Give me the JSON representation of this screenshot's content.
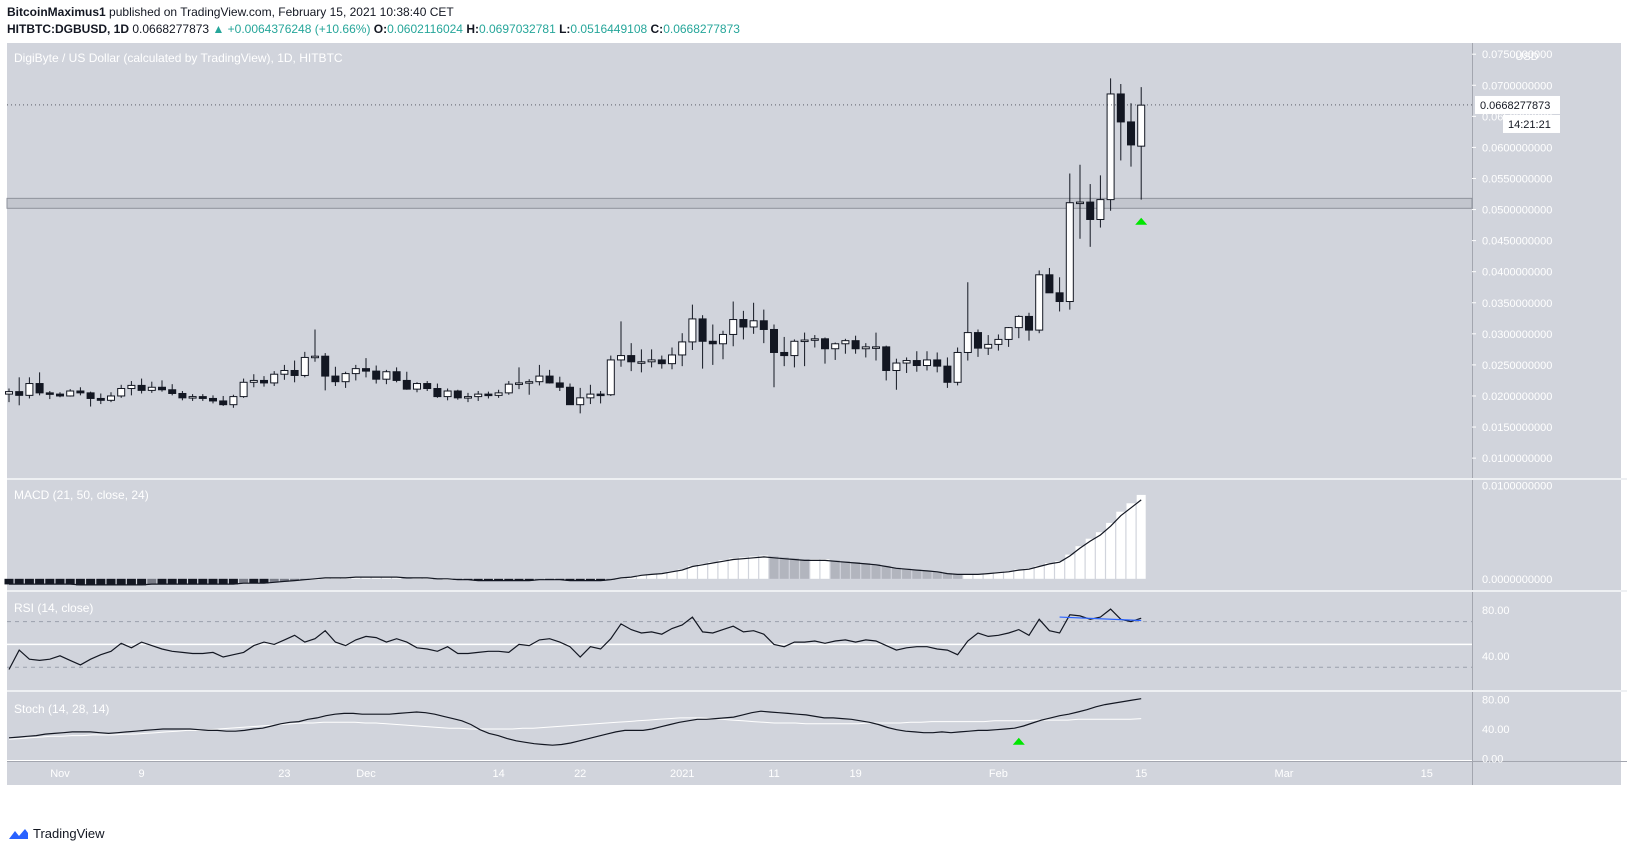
{
  "header": {
    "author": "BitcoinMaximus1",
    "published": "published on TradingView.com, February 15, 2021 10:38:40 CET",
    "symbol": "HITBTC:DGBUSD, 1D",
    "last": "0.0668277873",
    "change": "▲ +0.0064376248 (+10.66%)",
    "o_label": "O:",
    "o_value": "0.0602116024",
    "h_label": "H:",
    "h_value": "0.0697032781",
    "l_label": "L:",
    "l_value": "0.0516449108",
    "c_label": "C:",
    "c_value": "0.0668277873"
  },
  "footer": {
    "brand": "TradingView"
  },
  "colors": {
    "pane_bg": "#d1d4dc",
    "up_body": "#ffffff",
    "down_body": "#131722",
    "arrow": "#00e600",
    "price_text": "#131722"
  },
  "chart_data": {
    "type": "candlestick",
    "title": "DigiByte / US Dollar (calculated by TradingView), 1D, HITBTC",
    "currency": "USD",
    "ylim": [
      0.0068,
      0.0768
    ],
    "price_ticks": [
      "0.0750000000",
      "0.0700000000",
      "0.0650000000",
      "0.0600000000",
      "0.0550000000",
      "0.0500000000",
      "0.0450000000",
      "0.0400000000",
      "0.0350000000",
      "0.0300000000",
      "0.0250000000",
      "0.0200000000",
      "0.0150000000",
      "0.0100000000"
    ],
    "last_price_label": "0.0668277873",
    "countdown_label": "14:21:21",
    "support_zone": [
      0.0502,
      0.0518
    ],
    "x_labels": [
      "Nov",
      "9",
      "23",
      "Dec",
      "14",
      "22",
      "2021",
      "11",
      "19",
      "Feb",
      "15",
      "Mar",
      "15"
    ],
    "ohlc": [
      [
        0.0203,
        0.0212,
        0.019,
        0.0207
      ],
      [
        0.0207,
        0.023,
        0.0185,
        0.0201
      ],
      [
        0.0201,
        0.023,
        0.0196,
        0.022
      ],
      [
        0.022,
        0.0238,
        0.0201,
        0.0205
      ],
      [
        0.0205,
        0.0208,
        0.0195,
        0.0203
      ],
      [
        0.0203,
        0.0206,
        0.0198,
        0.02
      ],
      [
        0.02,
        0.0211,
        0.0199,
        0.0208
      ],
      [
        0.0208,
        0.0214,
        0.0201,
        0.0205
      ],
      [
        0.0205,
        0.0207,
        0.0183,
        0.0196
      ],
      [
        0.0196,
        0.0204,
        0.0187,
        0.0193
      ],
      [
        0.0193,
        0.0206,
        0.019,
        0.02
      ],
      [
        0.02,
        0.0218,
        0.0197,
        0.0212
      ],
      [
        0.0212,
        0.0224,
        0.0201,
        0.0217
      ],
      [
        0.0217,
        0.0228,
        0.0204,
        0.0209
      ],
      [
        0.0209,
        0.0223,
        0.0205,
        0.0214
      ],
      [
        0.0214,
        0.0225,
        0.0207,
        0.021
      ],
      [
        0.021,
        0.0219,
        0.0201,
        0.0204
      ],
      [
        0.0204,
        0.0208,
        0.0193,
        0.0197
      ],
      [
        0.0197,
        0.0203,
        0.0192,
        0.0199
      ],
      [
        0.0199,
        0.0203,
        0.0192,
        0.0196
      ],
      [
        0.0196,
        0.0201,
        0.0188,
        0.0192
      ],
      [
        0.0192,
        0.02,
        0.0184,
        0.0186
      ],
      [
        0.0186,
        0.0202,
        0.0181,
        0.0199
      ],
      [
        0.0199,
        0.0228,
        0.0197,
        0.0222
      ],
      [
        0.0222,
        0.0235,
        0.0214,
        0.0225
      ],
      [
        0.0225,
        0.0232,
        0.0215,
        0.0221
      ],
      [
        0.0221,
        0.024,
        0.0216,
        0.0235
      ],
      [
        0.0235,
        0.025,
        0.0226,
        0.0241
      ],
      [
        0.0241,
        0.0257,
        0.0222,
        0.0233
      ],
      [
        0.0233,
        0.0271,
        0.023,
        0.0262
      ],
      [
        0.0262,
        0.0307,
        0.0255,
        0.0264
      ],
      [
        0.0264,
        0.0269,
        0.0209,
        0.0232
      ],
      [
        0.0232,
        0.0247,
        0.0216,
        0.0223
      ],
      [
        0.0223,
        0.0239,
        0.0213,
        0.0236
      ],
      [
        0.0236,
        0.025,
        0.0225,
        0.0244
      ],
      [
        0.0244,
        0.0261,
        0.023,
        0.024
      ],
      [
        0.024,
        0.0249,
        0.022,
        0.0227
      ],
      [
        0.0227,
        0.0242,
        0.0219,
        0.0239
      ],
      [
        0.0239,
        0.0246,
        0.0222,
        0.0225
      ],
      [
        0.0225,
        0.0239,
        0.021,
        0.0211
      ],
      [
        0.0211,
        0.0222,
        0.0206,
        0.022
      ],
      [
        0.022,
        0.0224,
        0.0208,
        0.0212
      ],
      [
        0.0212,
        0.022,
        0.0197,
        0.0199
      ],
      [
        0.0199,
        0.0212,
        0.0193,
        0.0208
      ],
      [
        0.0208,
        0.021,
        0.0194,
        0.0197
      ],
      [
        0.0197,
        0.0205,
        0.019,
        0.0199
      ],
      [
        0.0199,
        0.0208,
        0.0192,
        0.0203
      ],
      [
        0.0203,
        0.0207,
        0.0196,
        0.0201
      ],
      [
        0.0201,
        0.021,
        0.0197,
        0.0205
      ],
      [
        0.0205,
        0.0224,
        0.0202,
        0.0219
      ],
      [
        0.0219,
        0.0246,
        0.0211,
        0.0221
      ],
      [
        0.0221,
        0.0227,
        0.0202,
        0.0223
      ],
      [
        0.0223,
        0.025,
        0.0217,
        0.0232
      ],
      [
        0.0232,
        0.0242,
        0.022,
        0.0221
      ],
      [
        0.0221,
        0.0231,
        0.0208,
        0.0214
      ],
      [
        0.0214,
        0.022,
        0.0187,
        0.0186
      ],
      [
        0.0186,
        0.0213,
        0.0172,
        0.0197
      ],
      [
        0.0197,
        0.0218,
        0.0187,
        0.0203
      ],
      [
        0.0203,
        0.0208,
        0.0188,
        0.0202
      ],
      [
        0.0202,
        0.0265,
        0.02,
        0.0258
      ],
      [
        0.0258,
        0.032,
        0.0247,
        0.0265
      ],
      [
        0.0265,
        0.0285,
        0.024,
        0.0255
      ],
      [
        0.0255,
        0.0275,
        0.0238,
        0.0255
      ],
      [
        0.0255,
        0.0275,
        0.0246,
        0.0258
      ],
      [
        0.0258,
        0.0265,
        0.0244,
        0.0252
      ],
      [
        0.0252,
        0.0278,
        0.0243,
        0.0266
      ],
      [
        0.0266,
        0.0301,
        0.0248,
        0.0287
      ],
      [
        0.0287,
        0.0347,
        0.0274,
        0.0324
      ],
      [
        0.0324,
        0.033,
        0.0244,
        0.0288
      ],
      [
        0.0288,
        0.0315,
        0.025,
        0.0284
      ],
      [
        0.0284,
        0.0305,
        0.0259,
        0.0299
      ],
      [
        0.0299,
        0.0352,
        0.028,
        0.0323
      ],
      [
        0.0323,
        0.0337,
        0.0291,
        0.0311
      ],
      [
        0.0311,
        0.035,
        0.03,
        0.0321
      ],
      [
        0.0321,
        0.0339,
        0.0285,
        0.0307
      ],
      [
        0.0307,
        0.0315,
        0.0214,
        0.027
      ],
      [
        0.027,
        0.0295,
        0.0248,
        0.0265
      ],
      [
        0.0265,
        0.0291,
        0.0246,
        0.0288
      ],
      [
        0.0288,
        0.0302,
        0.0248,
        0.029
      ],
      [
        0.029,
        0.0298,
        0.0278,
        0.0292
      ],
      [
        0.0292,
        0.0294,
        0.0252,
        0.0276
      ],
      [
        0.0276,
        0.0286,
        0.0258,
        0.0284
      ],
      [
        0.0284,
        0.0292,
        0.0268,
        0.0289
      ],
      [
        0.0289,
        0.0297,
        0.0268,
        0.0276
      ],
      [
        0.0276,
        0.0285,
        0.0262,
        0.0279
      ],
      [
        0.0279,
        0.0302,
        0.0257,
        0.0279
      ],
      [
        0.0279,
        0.0281,
        0.0225,
        0.0241
      ],
      [
        0.0241,
        0.026,
        0.021,
        0.0253
      ],
      [
        0.0253,
        0.0262,
        0.0237,
        0.0257
      ],
      [
        0.0257,
        0.0272,
        0.0239,
        0.0249
      ],
      [
        0.0249,
        0.0272,
        0.0241,
        0.0258
      ],
      [
        0.0258,
        0.027,
        0.0238,
        0.0248
      ],
      [
        0.0248,
        0.0262,
        0.0213,
        0.0222
      ],
      [
        0.0222,
        0.0278,
        0.0217,
        0.027
      ],
      [
        0.027,
        0.0383,
        0.0257,
        0.0302
      ],
      [
        0.0302,
        0.0307,
        0.0263,
        0.0277
      ],
      [
        0.0277,
        0.0298,
        0.0266,
        0.0283
      ],
      [
        0.0283,
        0.0299,
        0.0273,
        0.0291
      ],
      [
        0.0291,
        0.0311,
        0.0279,
        0.031
      ],
      [
        0.031,
        0.033,
        0.0293,
        0.0328
      ],
      [
        0.0328,
        0.0334,
        0.0289,
        0.0306
      ],
      [
        0.0306,
        0.0402,
        0.0301,
        0.0395
      ],
      [
        0.0395,
        0.0406,
        0.0367,
        0.0366
      ],
      [
        0.0366,
        0.0391,
        0.0336,
        0.0352
      ],
      [
        0.0352,
        0.0558,
        0.0339,
        0.0511
      ],
      [
        0.0511,
        0.0572,
        0.0453,
        0.0512
      ],
      [
        0.0512,
        0.0541,
        0.044,
        0.0484
      ],
      [
        0.0484,
        0.0555,
        0.0471,
        0.0516
      ],
      [
        0.0516,
        0.0711,
        0.0498,
        0.0686
      ],
      [
        0.0686,
        0.0702,
        0.0579,
        0.0641
      ],
      [
        0.0641,
        0.0671,
        0.0569,
        0.0604
      ],
      [
        0.0602,
        0.0697,
        0.0516,
        0.0668
      ]
    ],
    "macd": {
      "title": "MACD (21, 50, close, 24)",
      "ticks": [
        "0.0100000000",
        "0.0000000000"
      ],
      "ylim": [
        -0.0012,
        0.0106
      ],
      "macd_line": [
        -0.0006,
        -0.0006,
        -0.0006,
        -0.0006,
        -0.0006,
        -0.0006,
        -0.0006,
        -0.0007,
        -0.0007,
        -0.0007,
        -0.0007,
        -0.0007,
        -0.0007,
        -0.0007,
        -0.0006,
        -0.0006,
        -0.0006,
        -0.0006,
        -0.0006,
        -0.0006,
        -0.0006,
        -0.0006,
        -0.0006,
        -0.0005,
        -0.0005,
        -0.0005,
        -0.0004,
        -0.0003,
        -0.0002,
        -0.0001,
        0.0,
        0.0001,
        0.0001,
        0.0001,
        0.0002,
        0.0002,
        0.0002,
        0.0002,
        0.0002,
        0.0001,
        0.0001,
        0.0001,
        0.0,
        0.0,
        -0.0001,
        -0.0001,
        -0.0002,
        -0.0002,
        -0.0002,
        -0.0002,
        -0.0002,
        -0.0002,
        -0.0001,
        -0.0001,
        -0.0001,
        -0.0002,
        -0.0002,
        -0.0002,
        -0.0002,
        -0.0001,
        0.0001,
        0.0002,
        0.0004,
        0.0005,
        0.0006,
        0.0008,
        0.001,
        0.0014,
        0.0016,
        0.0018,
        0.002,
        0.0022,
        0.0023,
        0.0024,
        0.0025,
        0.0024,
        0.0023,
        0.0022,
        0.0021,
        0.0021,
        0.0021,
        0.002,
        0.0019,
        0.0018,
        0.0017,
        0.0016,
        0.0014,
        0.0012,
        0.0011,
        0.001,
        0.0009,
        0.0008,
        0.0006,
        0.0005,
        0.0005,
        0.0005,
        0.0006,
        0.0007,
        0.0008,
        0.001,
        0.0011,
        0.0014,
        0.0017,
        0.0019,
        0.0026,
        0.0035,
        0.0043,
        0.005,
        0.006,
        0.0072,
        0.0081,
        0.009
      ]
    },
    "rsi": {
      "title": "RSI (14, close)",
      "ticks": [
        "80.00",
        "40.00"
      ],
      "ylim": [
        10,
        96
      ],
      "bands": [
        70,
        30
      ],
      "midline": 50,
      "values": [
        28,
        45,
        37,
        36,
        37,
        40,
        36,
        32,
        37,
        41,
        44,
        51,
        47,
        52,
        49,
        46,
        44,
        43,
        42,
        42,
        43,
        39,
        41,
        43,
        49,
        52,
        50,
        54,
        58,
        52,
        55,
        62,
        52,
        49,
        54,
        57,
        56,
        52,
        55,
        52,
        47,
        46,
        44,
        48,
        42,
        42,
        43,
        44,
        44,
        43,
        50,
        49,
        54,
        55,
        52,
        48,
        39,
        48,
        46,
        55,
        68,
        63,
        60,
        61,
        59,
        64,
        67,
        74,
        61,
        60,
        63,
        66,
        61,
        62,
        59,
        50,
        48,
        52,
        52,
        53,
        51,
        53,
        54,
        52,
        54,
        53,
        49,
        45,
        47,
        48,
        48,
        46,
        45,
        41,
        53,
        60,
        57,
        58,
        60,
        63,
        58,
        72,
        62,
        60,
        76,
        75,
        72,
        74,
        81,
        72,
        70,
        73
      ],
      "divergence_line": [
        [
          103,
          74
        ],
        [
          111,
          71
        ]
      ]
    },
    "stoch": {
      "title": "Stoch (14, 28, 14)",
      "ticks": [
        "80.00",
        "40.00",
        "0.00"
      ],
      "ylim": [
        -2,
        90
      ],
      "k_values": [
        28,
        29,
        30,
        31,
        33,
        34,
        35,
        36,
        36,
        36,
        35,
        34,
        35,
        36,
        37,
        38,
        39,
        40,
        40,
        40,
        40,
        39,
        38,
        38,
        37,
        37,
        38,
        40,
        41,
        44,
        47,
        49,
        50,
        53,
        55,
        58,
        60,
        61,
        61,
        60,
        60,
        60,
        60,
        61,
        62,
        63,
        62,
        60,
        57,
        54,
        51,
        46,
        39,
        34,
        31,
        27,
        24,
        22,
        20,
        19,
        18,
        19,
        21,
        24,
        27,
        30,
        33,
        36,
        38,
        38,
        38,
        40,
        43,
        46,
        49,
        51,
        53,
        53,
        54,
        55,
        56,
        59,
        62,
        64,
        63,
        62,
        61,
        60,
        59,
        57,
        55,
        55,
        54,
        53,
        51,
        49,
        46,
        42,
        39,
        37,
        36,
        35,
        35,
        36,
        35,
        36,
        37,
        38,
        38,
        39,
        40,
        41,
        44,
        48,
        52,
        55,
        58,
        60,
        63,
        66,
        70,
        73,
        75,
        77,
        79,
        81
      ],
      "d_values": [
        26,
        27,
        28,
        29,
        30,
        30,
        31,
        31,
        32,
        32,
        32,
        33,
        33,
        34,
        35,
        36,
        37,
        38,
        38,
        39,
        40,
        41,
        42,
        43,
        44,
        45,
        46,
        47,
        48,
        48,
        49,
        49,
        49,
        49,
        48,
        48,
        47,
        46,
        45,
        44,
        43,
        42,
        41,
        41,
        40,
        40,
        40,
        40,
        40,
        41,
        41,
        42,
        43,
        44,
        45,
        46,
        47,
        48,
        49,
        50,
        51,
        52,
        53,
        54,
        55,
        55,
        55,
        54,
        53,
        52,
        51,
        50,
        49,
        48,
        48,
        48,
        47,
        47,
        47,
        47,
        47,
        47,
        48,
        48,
        48,
        48,
        49,
        49,
        50,
        50,
        50,
        50,
        50,
        50,
        51,
        51,
        51,
        51,
        52,
        52,
        52,
        52,
        53,
        53,
        53,
        53,
        53,
        53,
        54
      ]
    },
    "signals": [
      {
        "pane": "price",
        "index": 111,
        "value": 0.0482,
        "direction": "up"
      },
      {
        "pane": "stoch",
        "index": 99,
        "value": 24,
        "direction": "up"
      }
    ]
  }
}
